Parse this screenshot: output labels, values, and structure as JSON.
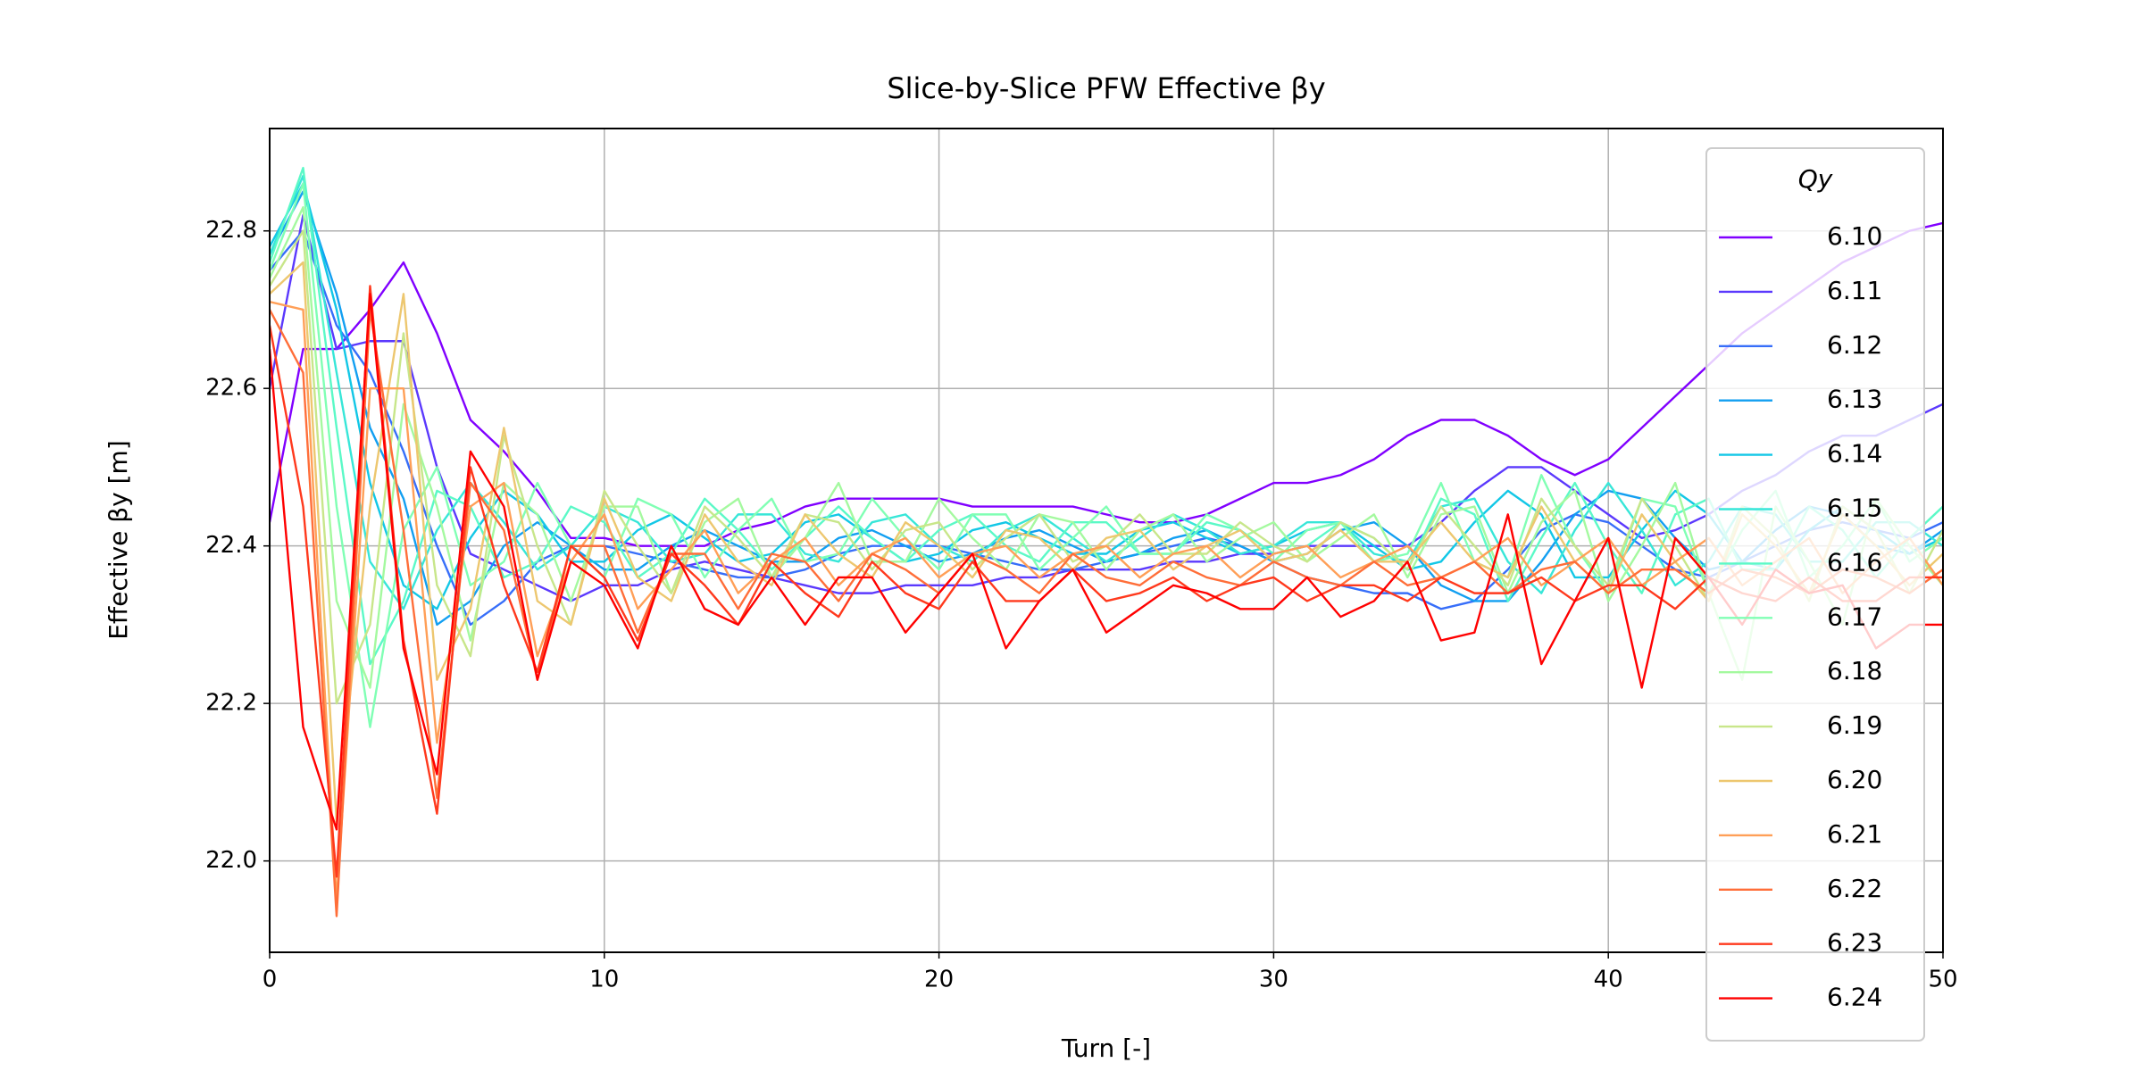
{
  "chart_data": {
    "type": "line",
    "title": "Slice-by-Slice PFW Effective βy",
    "xlabel": "Turn [-]",
    "ylabel": "Effective βy [m]",
    "legend_title": "Qy",
    "legend": "upper right",
    "grid": true,
    "xlim": [
      0,
      50
    ],
    "ylim": [
      21.884,
      22.93
    ],
    "xticks": [
      0,
      10,
      20,
      30,
      40,
      50
    ],
    "yticks": [
      {
        "value": 22,
        "label": "22.0"
      },
      22.2,
      22.4,
      22.6,
      22.8
    ],
    "x": [
      0,
      1,
      2,
      3,
      4,
      5,
      6,
      7,
      8,
      9,
      10,
      11,
      12,
      13,
      14,
      15,
      16,
      17,
      18,
      19,
      20,
      21,
      22,
      23,
      24,
      25,
      26,
      27,
      28,
      29,
      30,
      31,
      32,
      33,
      34,
      35,
      36,
      37,
      38,
      39,
      40,
      41,
      42,
      43,
      44,
      45,
      46,
      47,
      48,
      49,
      50
    ],
    "series": [
      {
        "name": "6.10",
        "color": "#8000ff",
        "values": [
          22.43,
          22.65,
          22.65,
          22.7,
          22.76,
          22.67,
          22.56,
          22.52,
          22.47,
          22.41,
          22.41,
          22.4,
          22.4,
          22.4,
          22.42,
          22.43,
          22.45,
          22.46,
          22.46,
          22.46,
          22.46,
          22.45,
          22.45,
          22.45,
          22.45,
          22.44,
          22.43,
          22.43,
          22.44,
          22.46,
          22.48,
          22.48,
          22.49,
          22.51,
          22.54,
          22.56,
          22.56,
          22.54,
          22.51,
          22.49,
          22.51,
          22.55,
          22.59,
          22.63,
          22.67,
          22.7,
          22.73,
          22.76,
          22.78,
          22.8,
          22.81
        ]
      },
      {
        "name": "6.11",
        "color": "#5b39fd",
        "values": [
          22.6,
          22.82,
          22.65,
          22.66,
          22.66,
          22.5,
          22.39,
          22.37,
          22.35,
          22.33,
          22.35,
          22.35,
          22.37,
          22.38,
          22.37,
          22.36,
          22.35,
          22.34,
          22.34,
          22.35,
          22.35,
          22.35,
          22.36,
          22.36,
          22.37,
          22.37,
          22.37,
          22.38,
          22.38,
          22.39,
          22.39,
          22.4,
          22.4,
          22.4,
          22.4,
          22.43,
          22.47,
          22.5,
          22.5,
          22.47,
          22.44,
          22.41,
          22.42,
          22.44,
          22.47,
          22.49,
          22.52,
          22.54,
          22.54,
          22.56,
          22.58
        ]
      },
      {
        "name": "6.12",
        "color": "#376ef9",
        "values": [
          22.75,
          22.8,
          22.68,
          22.62,
          22.52,
          22.4,
          22.3,
          22.33,
          22.38,
          22.4,
          22.4,
          22.39,
          22.38,
          22.37,
          22.36,
          22.36,
          22.37,
          22.39,
          22.4,
          22.4,
          22.4,
          22.39,
          22.38,
          22.37,
          22.37,
          22.38,
          22.39,
          22.4,
          22.41,
          22.4,
          22.38,
          22.36,
          22.35,
          22.34,
          22.34,
          22.32,
          22.33,
          22.37,
          22.42,
          22.44,
          22.43,
          22.4,
          22.37,
          22.36,
          22.38,
          22.4,
          22.42,
          22.43,
          22.42,
          22.41,
          22.43
        ]
      },
      {
        "name": "6.13",
        "color": "#129ff1",
        "values": [
          22.77,
          22.85,
          22.72,
          22.55,
          22.46,
          22.3,
          22.33,
          22.4,
          22.43,
          22.4,
          22.37,
          22.37,
          22.4,
          22.42,
          22.4,
          22.38,
          22.38,
          22.41,
          22.42,
          22.4,
          22.38,
          22.39,
          22.41,
          22.42,
          22.4,
          22.38,
          22.39,
          22.41,
          22.42,
          22.4,
          22.38,
          22.39,
          22.42,
          22.43,
          22.4,
          22.35,
          22.33,
          22.33,
          22.38,
          22.44,
          22.47,
          22.46,
          22.41,
          22.37,
          22.38,
          22.42,
          22.45,
          22.44,
          22.4,
          22.39,
          22.42
        ]
      },
      {
        "name": "6.14",
        "color": "#12c7e6",
        "values": [
          22.78,
          22.86,
          22.7,
          22.48,
          22.35,
          22.32,
          22.41,
          22.47,
          22.44,
          22.38,
          22.38,
          22.42,
          22.44,
          22.41,
          22.38,
          22.39,
          22.43,
          22.44,
          22.41,
          22.38,
          22.39,
          22.42,
          22.43,
          22.41,
          22.39,
          22.39,
          22.42,
          22.43,
          22.41,
          22.39,
          22.4,
          22.42,
          22.43,
          22.4,
          22.37,
          22.38,
          22.43,
          22.47,
          22.44,
          22.36,
          22.36,
          22.42,
          22.47,
          22.44,
          22.38,
          22.37,
          22.42,
          22.45,
          22.42,
          22.39,
          22.41
        ]
      },
      {
        "name": "6.15",
        "color": "#37e6d8",
        "values": [
          22.77,
          22.87,
          22.62,
          22.38,
          22.32,
          22.42,
          22.48,
          22.43,
          22.37,
          22.4,
          22.45,
          22.43,
          22.38,
          22.39,
          22.44,
          22.44,
          22.39,
          22.38,
          22.43,
          22.44,
          22.4,
          22.38,
          22.42,
          22.44,
          22.41,
          22.38,
          22.41,
          22.44,
          22.42,
          22.39,
          22.4,
          22.43,
          22.43,
          22.39,
          22.38,
          22.45,
          22.46,
          22.38,
          22.34,
          22.42,
          22.48,
          22.42,
          22.35,
          22.38,
          22.45,
          22.44,
          22.38,
          22.38,
          22.43,
          22.43,
          22.4
        ]
      },
      {
        "name": "6.16",
        "color": "#5bf9c7",
        "values": [
          22.76,
          22.88,
          22.55,
          22.25,
          22.33,
          22.47,
          22.45,
          22.36,
          22.38,
          22.45,
          22.43,
          22.36,
          22.39,
          22.46,
          22.42,
          22.37,
          22.41,
          22.45,
          22.41,
          22.38,
          22.42,
          22.44,
          22.4,
          22.38,
          22.43,
          22.43,
          22.39,
          22.39,
          22.43,
          22.42,
          22.39,
          22.4,
          22.43,
          22.41,
          22.37,
          22.46,
          22.44,
          22.33,
          22.41,
          22.48,
          22.4,
          22.34,
          22.44,
          22.46,
          22.37,
          22.37,
          22.45,
          22.42,
          22.36,
          22.41,
          22.45
        ]
      },
      {
        "name": "6.17",
        "color": "#80ffb4",
        "values": [
          22.75,
          22.86,
          22.45,
          22.17,
          22.42,
          22.5,
          22.35,
          22.38,
          22.48,
          22.4,
          22.36,
          22.46,
          22.44,
          22.36,
          22.42,
          22.46,
          22.38,
          22.39,
          22.46,
          22.41,
          22.37,
          22.44,
          22.44,
          22.37,
          22.41,
          22.45,
          22.39,
          22.39,
          22.44,
          22.42,
          22.38,
          22.42,
          22.43,
          22.38,
          22.39,
          22.48,
          22.38,
          22.36,
          22.49,
          22.4,
          22.34,
          22.46,
          22.45,
          22.34,
          22.42,
          22.47,
          22.36,
          22.4,
          22.46,
          22.38,
          22.41
        ]
      },
      {
        "name": "6.18",
        "color": "#a4f99f",
        "values": [
          22.74,
          22.83,
          22.33,
          22.22,
          22.58,
          22.45,
          22.28,
          22.48,
          22.44,
          22.33,
          22.45,
          22.45,
          22.34,
          22.43,
          22.46,
          22.36,
          22.41,
          22.48,
          22.38,
          22.38,
          22.46,
          22.41,
          22.37,
          22.44,
          22.43,
          22.37,
          22.42,
          22.44,
          22.38,
          22.41,
          22.43,
          22.38,
          22.41,
          22.44,
          22.36,
          22.44,
          22.45,
          22.34,
          22.43,
          22.47,
          22.33,
          22.4,
          22.48,
          22.34,
          22.23,
          22.45,
          22.38,
          22.3,
          22.46,
          22.4,
          22.35
        ]
      },
      {
        "name": "6.19",
        "color": "#c8e68a",
        "values": [
          22.73,
          22.8,
          22.2,
          22.3,
          22.67,
          22.35,
          22.26,
          22.54,
          22.4,
          22.3,
          22.47,
          22.4,
          22.34,
          22.45,
          22.41,
          22.36,
          22.44,
          22.43,
          22.37,
          22.42,
          22.43,
          22.37,
          22.41,
          22.44,
          22.38,
          22.4,
          22.44,
          22.39,
          22.39,
          22.43,
          22.4,
          22.38,
          22.43,
          22.41,
          22.37,
          22.45,
          22.4,
          22.35,
          22.46,
          22.4,
          22.35,
          22.46,
          22.4,
          22.33,
          22.45,
          22.41,
          22.33,
          22.45,
          22.42,
          22.34,
          22.42
        ]
      },
      {
        "name": "6.20",
        "color": "#edc76f",
        "values": [
          22.72,
          22.76,
          22.05,
          22.45,
          22.72,
          22.23,
          22.32,
          22.55,
          22.33,
          22.3,
          22.46,
          22.36,
          22.33,
          22.44,
          22.38,
          22.35,
          22.44,
          22.39,
          22.36,
          22.43,
          22.4,
          22.36,
          22.42,
          22.41,
          22.37,
          22.41,
          22.42,
          22.37,
          22.4,
          22.42,
          22.38,
          22.39,
          22.42,
          22.38,
          22.38,
          22.43,
          22.38,
          22.36,
          22.45,
          22.38,
          22.34,
          22.44,
          22.38,
          22.33,
          22.44,
          22.4,
          22.34,
          22.44,
          22.4,
          22.35,
          22.39
        ]
      },
      {
        "name": "6.21",
        "color": "#ff9f57",
        "values": [
          22.71,
          22.7,
          21.95,
          22.6,
          22.6,
          22.15,
          22.45,
          22.48,
          22.26,
          22.38,
          22.44,
          22.32,
          22.37,
          22.42,
          22.34,
          22.38,
          22.41,
          22.35,
          22.39,
          22.41,
          22.36,
          22.39,
          22.4,
          22.36,
          22.39,
          22.4,
          22.36,
          22.39,
          22.4,
          22.36,
          22.39,
          22.4,
          22.36,
          22.38,
          22.4,
          22.36,
          22.38,
          22.41,
          22.35,
          22.38,
          22.41,
          22.35,
          22.38,
          22.41,
          22.35,
          22.38,
          22.41,
          22.34,
          22.38,
          22.41,
          22.35
        ]
      },
      {
        "name": "6.22",
        "color": "#ff6e39",
        "values": [
          22.7,
          22.62,
          21.93,
          22.7,
          22.42,
          22.08,
          22.48,
          22.42,
          22.23,
          22.4,
          22.4,
          22.29,
          22.39,
          22.39,
          22.32,
          22.39,
          22.38,
          22.33,
          22.39,
          22.37,
          22.34,
          22.39,
          22.37,
          22.34,
          22.39,
          22.36,
          22.35,
          22.38,
          22.36,
          22.35,
          22.38,
          22.36,
          22.35,
          22.38,
          22.35,
          22.36,
          22.38,
          22.34,
          22.37,
          22.38,
          22.34,
          22.37,
          22.37,
          22.34,
          22.37,
          22.36,
          22.34,
          22.37,
          22.36,
          22.34,
          22.37
        ]
      },
      {
        "name": "6.23",
        "color": "#ff391d",
        "values": [
          22.68,
          22.45,
          21.98,
          22.73,
          22.28,
          22.06,
          22.5,
          22.35,
          22.24,
          22.4,
          22.36,
          22.28,
          22.39,
          22.35,
          22.3,
          22.38,
          22.34,
          22.31,
          22.38,
          22.34,
          22.32,
          22.38,
          22.33,
          22.33,
          22.37,
          22.33,
          22.34,
          22.36,
          22.33,
          22.35,
          22.36,
          22.33,
          22.35,
          22.35,
          22.33,
          22.36,
          22.34,
          22.34,
          22.36,
          22.33,
          22.35,
          22.35,
          22.32,
          22.36,
          22.34,
          22.33,
          22.36,
          22.33,
          22.33,
          22.36,
          22.36
        ]
      },
      {
        "name": "6.24",
        "color": "#ff0000",
        "values": [
          22.65,
          22.17,
          22.04,
          22.72,
          22.27,
          22.11,
          22.52,
          22.45,
          22.23,
          22.38,
          22.35,
          22.27,
          22.4,
          22.32,
          22.3,
          22.36,
          22.3,
          22.36,
          22.36,
          22.29,
          22.34,
          22.39,
          22.27,
          22.33,
          22.37,
          22.29,
          22.32,
          22.35,
          22.34,
          22.32,
          22.32,
          22.36,
          22.31,
          22.33,
          22.38,
          22.28,
          22.29,
          22.44,
          22.25,
          22.33,
          22.41,
          22.22,
          22.41,
          22.36,
          22.3,
          22.37,
          22.34,
          22.35,
          22.27,
          22.3,
          22.3
        ]
      }
    ]
  }
}
